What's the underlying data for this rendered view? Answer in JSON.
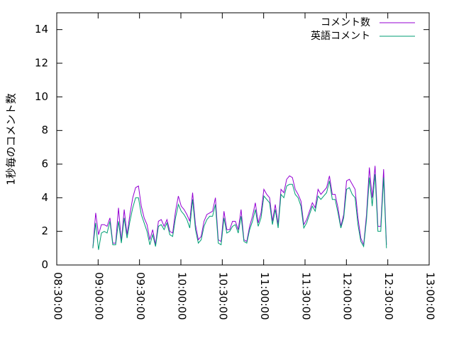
{
  "chart_data": {
    "type": "line",
    "ylabel": "1秒毎のコメント数",
    "x": [
      32170,
      32294,
      32418,
      32542,
      32666,
      32790,
      32914,
      33038,
      33162,
      33286,
      33410,
      33534,
      33658,
      33782,
      33906,
      34030,
      34154,
      34278,
      34402,
      34526,
      34650,
      34774,
      34898,
      35022,
      35146,
      35270,
      35394,
      35518,
      35642,
      35766,
      35890,
      36014,
      36138,
      36262,
      36386,
      36510,
      36634,
      36758,
      36882,
      37006,
      37130,
      37254,
      37378,
      37502,
      37626,
      37750,
      37874,
      37998,
      38122,
      38246,
      38370,
      38494,
      38618,
      38742,
      38866,
      38990,
      39114,
      39238,
      39362,
      39486,
      39610,
      39734,
      39858,
      39982,
      40106,
      40230,
      40354,
      40478,
      40602,
      40726,
      40850,
      40974,
      41098,
      41222,
      41346,
      41470,
      41594,
      41718,
      41842,
      41966,
      42090,
      42214,
      42338,
      42462,
      42586,
      42710,
      42834,
      42958,
      43082,
      43206,
      43330,
      43454,
      43578,
      43702,
      43826,
      43950,
      44074,
      44198,
      44322,
      44446,
      44570,
      44694,
      44818,
      44942
    ],
    "series": [
      {
        "name": "コメント数",
        "color": "#9400d3",
        "values": [
          1.0,
          3.1,
          1.8,
          2.4,
          2.4,
          2.3,
          2.8,
          1.3,
          1.3,
          3.4,
          1.4,
          3.3,
          1.8,
          3.0,
          4.0,
          4.6,
          4.7,
          3.5,
          2.8,
          2.4,
          1.5,
          2.1,
          1.2,
          2.6,
          2.7,
          2.3,
          2.7,
          2.0,
          1.9,
          3.2,
          4.1,
          3.5,
          3.3,
          3.0,
          2.6,
          4.3,
          2.4,
          1.5,
          1.7,
          2.6,
          3.0,
          3.1,
          3.2,
          4.0,
          1.5,
          1.4,
          3.2,
          2.1,
          2.1,
          2.6,
          2.6,
          2.1,
          3.3,
          1.5,
          1.4,
          2.3,
          2.9,
          3.7,
          2.5,
          3.1,
          4.5,
          4.2,
          4.0,
          2.6,
          3.6,
          2.4,
          4.5,
          4.3,
          5.1,
          5.3,
          5.2,
          4.5,
          4.2,
          3.8,
          2.4,
          2.7,
          3.2,
          3.7,
          3.4,
          4.5,
          4.2,
          4.4,
          4.6,
          5.3,
          4.2,
          4.2,
          3.4,
          2.3,
          3.0,
          5.0,
          5.1,
          4.8,
          4.5,
          2.8,
          1.6,
          1.2,
          3.0,
          5.8,
          4.0,
          5.9,
          2.3,
          2.3,
          5.7,
          1.2
        ]
      },
      {
        "name": "英語コメント",
        "color": "#009e73",
        "values": [
          1.0,
          2.5,
          0.9,
          1.9,
          2.0,
          1.9,
          2.6,
          1.2,
          1.2,
          2.6,
          1.3,
          2.8,
          1.6,
          2.6,
          3.4,
          4.0,
          4.0,
          3.0,
          2.5,
          2.0,
          1.2,
          1.8,
          1.1,
          2.3,
          2.4,
          2.1,
          2.5,
          1.8,
          1.7,
          2.8,
          3.6,
          3.2,
          3.0,
          2.7,
          2.2,
          3.9,
          2.1,
          1.3,
          1.5,
          2.3,
          2.7,
          2.9,
          2.9,
          3.6,
          1.3,
          1.2,
          2.8,
          1.9,
          2.0,
          2.3,
          2.4,
          1.9,
          2.9,
          1.4,
          1.3,
          2.1,
          2.6,
          3.3,
          2.3,
          2.8,
          4.1,
          3.9,
          3.7,
          2.4,
          3.3,
          2.2,
          4.2,
          4.0,
          4.7,
          4.8,
          4.8,
          4.2,
          4.0,
          3.5,
          2.2,
          2.5,
          3.0,
          3.5,
          3.2,
          4.1,
          3.9,
          4.1,
          4.3,
          5.0,
          3.9,
          3.9,
          3.1,
          2.2,
          2.8,
          4.5,
          4.6,
          4.2,
          4.0,
          2.4,
          1.4,
          1.1,
          2.7,
          5.2,
          3.5,
          5.4,
          2.0,
          2.0,
          5.2,
          1.0
        ]
      }
    ],
    "xlim": [
      30600,
      46800
    ],
    "xticks": [
      {
        "value": 30600,
        "label": "08:30:00"
      },
      {
        "value": 32400,
        "label": "09:00:00"
      },
      {
        "value": 34200,
        "label": "09:30:00"
      },
      {
        "value": 36000,
        "label": "10:00:00"
      },
      {
        "value": 37800,
        "label": "10:30:00"
      },
      {
        "value": 39600,
        "label": "11:00:00"
      },
      {
        "value": 41400,
        "label": "11:30:00"
      },
      {
        "value": 43200,
        "label": "12:00:00"
      },
      {
        "value": 45000,
        "label": "12:30:00"
      },
      {
        "value": 46800,
        "label": "13:00:00"
      }
    ],
    "ylim": [
      0,
      15
    ],
    "yticks": [
      0,
      2,
      4,
      6,
      8,
      10,
      12,
      14
    ],
    "legend": "top-right"
  }
}
